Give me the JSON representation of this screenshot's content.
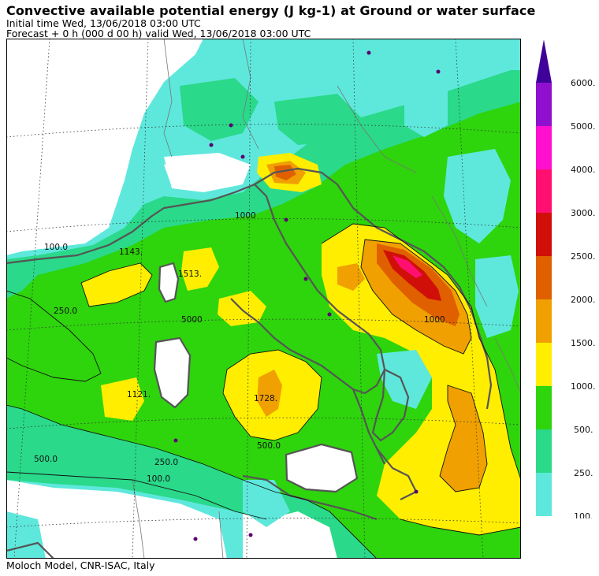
{
  "header": {
    "title": "Convective available potential energy (J kg-1) at Ground or water surface",
    "initial_time": "Initial time  Wed, 13/06/2018  03:00 UTC",
    "forecast": "Forecast  +   0 h  (000 d 00 h)  valid Wed, 13/06/2018 03:00 UTC"
  },
  "footer": "Moloch Model, CNR-ISAC, Italy",
  "colorbar": {
    "labels": [
      "6000.",
      "5000.",
      "4000.",
      "3000.",
      "2500.",
      "2000.",
      "1500.",
      "1000.",
      "500.",
      "250.",
      "100."
    ],
    "colors": {
      "100": "#5ee8dc",
      "250": "#2ad98a",
      "500": "#2ed40c",
      "1000": "#ffee00",
      "1500": "#f0a000",
      "2000": "#e06000",
      "2500": "#d01008",
      "3000": "#ff1070",
      "4000": "#ff10d0",
      "5000": "#9010d0",
      "6000": "#40009a"
    }
  },
  "map_labels": {
    "l1143": "1143.",
    "l1513": "1513.",
    "l1728": "1728.",
    "l1121": "1121.",
    "l500a": "500.0",
    "l500b": "500.0",
    "l250a": "250.0",
    "l250b": "250.0",
    "l100a": "100.0",
    "l100b": "100.0",
    "l1000a": "1000",
    "l1000b": "1000",
    "l5000": "5000"
  }
}
